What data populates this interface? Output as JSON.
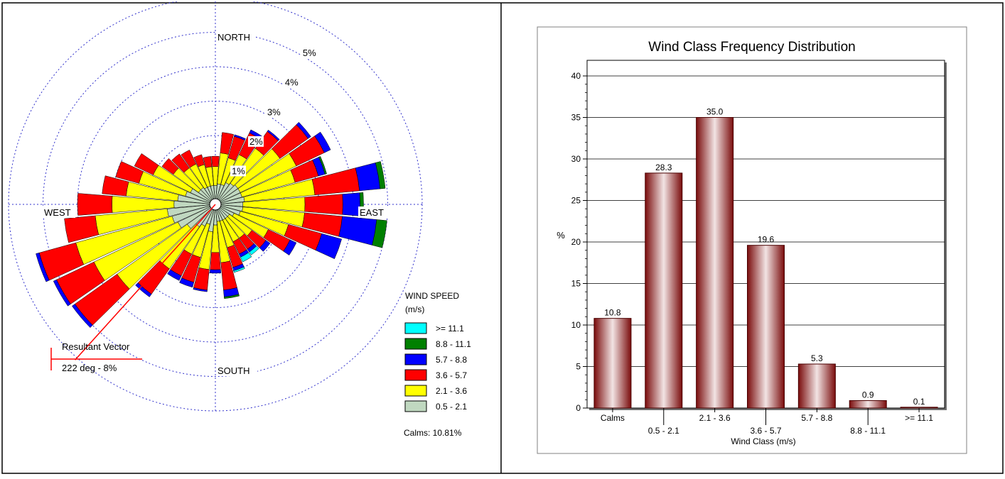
{
  "chart_data": [
    {
      "type": "wind-rose",
      "compass_labels": {
        "north": "NORTH",
        "south": "SOUTH",
        "east": "EAST",
        "west": "WEST"
      },
      "ring_labels": [
        "1%",
        "2%",
        "3%",
        "4%",
        "5%"
      ],
      "rings_pct": [
        1,
        2,
        3,
        4,
        5,
        6
      ],
      "directions_deg": [
        0,
        10,
        20,
        30,
        40,
        50,
        60,
        70,
        80,
        90,
        100,
        110,
        120,
        130,
        140,
        150,
        160,
        170,
        180,
        190,
        200,
        210,
        220,
        230,
        240,
        250,
        260,
        270,
        280,
        290,
        300,
        310,
        320,
        330,
        340,
        350
      ],
      "colors": [
        "#c0d8c0",
        "#ffff00",
        "#ff0000",
        "#0000ff",
        "#008000",
        "#00ffff"
      ],
      "cumulative_pct": [
        [
          0.55,
          1.1,
          1.4,
          1.4,
          1.4,
          1.4
        ],
        [
          0.6,
          1.5,
          2.1,
          2.1,
          2.1,
          2.1
        ],
        [
          0.6,
          1.4,
          2.05,
          2.1,
          2.1,
          2.1
        ],
        [
          0.7,
          1.6,
          2.3,
          2.4,
          2.4,
          2.4
        ],
        [
          0.75,
          2.0,
          2.6,
          2.65,
          2.65,
          2.65
        ],
        [
          0.8,
          2.3,
          3.3,
          3.4,
          3.4,
          3.4
        ],
        [
          0.8,
          2.6,
          3.5,
          3.7,
          3.7,
          3.7
        ],
        [
          0.8,
          2.4,
          3.1,
          3.3,
          3.35,
          3.35
        ],
        [
          0.85,
          2.9,
          4.2,
          4.8,
          4.95,
          4.95
        ],
        [
          0.8,
          2.6,
          3.7,
          4.2,
          4.3,
          4.3
        ],
        [
          0.8,
          2.6,
          3.7,
          4.7,
          5.0,
          5.0
        ],
        [
          0.75,
          2.2,
          3.2,
          3.8,
          3.8,
          3.8
        ],
        [
          0.6,
          1.7,
          2.4,
          2.6,
          2.6,
          2.6
        ],
        [
          0.5,
          1.3,
          1.8,
          1.95,
          1.95,
          1.95
        ],
        [
          0.5,
          1.2,
          1.6,
          1.7,
          1.7,
          1.8
        ],
        [
          0.5,
          1.2,
          1.6,
          1.7,
          1.7,
          1.85
        ],
        [
          0.5,
          1.3,
          1.9,
          2.0,
          2.0,
          2.05
        ],
        [
          0.5,
          1.7,
          2.5,
          2.7,
          2.75,
          2.75
        ],
        [
          0.6,
          1.4,
          1.9,
          2.0,
          2.0,
          2.0
        ],
        [
          0.8,
          1.9,
          2.5,
          2.55,
          2.55,
          2.55
        ],
        [
          0.6,
          1.6,
          2.35,
          2.5,
          2.5,
          2.5
        ],
        [
          0.7,
          1.6,
          2.3,
          2.45,
          2.45,
          2.45
        ],
        [
          0.8,
          2.3,
          3.2,
          3.3,
          3.3,
          3.3
        ],
        [
          1.0,
          3.5,
          5.0,
          5.1,
          5.1,
          5.1
        ],
        [
          1.2,
          3.9,
          5.1,
          5.2,
          5.2,
          5.2
        ],
        [
          1.3,
          4.2,
          5.3,
          5.4,
          5.4,
          5.4
        ],
        [
          1.4,
          3.5,
          4.4,
          4.4,
          4.4,
          4.4
        ],
        [
          1.2,
          3.0,
          4.0,
          4.0,
          4.0,
          4.0
        ],
        [
          1.1,
          2.6,
          3.3,
          3.3,
          3.3,
          3.3
        ],
        [
          0.9,
          2.3,
          3.0,
          3.0,
          3.0,
          3.0
        ],
        [
          0.8,
          2.0,
          2.6,
          2.6,
          2.6,
          2.6
        ],
        [
          0.6,
          1.5,
          1.9,
          1.9,
          1.9,
          1.9
        ],
        [
          0.6,
          1.3,
          1.8,
          1.8,
          1.8,
          1.8
        ],
        [
          0.55,
          1.3,
          1.75,
          1.75,
          1.75,
          1.75
        ],
        [
          0.55,
          1.2,
          1.5,
          1.5,
          1.5,
          1.5
        ],
        [
          0.55,
          1.1,
          1.4,
          1.4,
          1.4,
          1.4
        ]
      ],
      "resultant_vector": {
        "title": "Resultant Vector",
        "label": "222 deg - 8%",
        "direction_deg": 222
      },
      "legend": {
        "title_line1": "WIND SPEED",
        "title_line2": "(m/s)",
        "items": [
          {
            "label": ">= 11.1",
            "color": "#00ffff"
          },
          {
            "label": "8.8 - 11.1",
            "color": "#008000"
          },
          {
            "label": "5.7 -  8.8",
            "color": "#0000ff"
          },
          {
            "label": "3.6 -  5.7",
            "color": "#ff0000"
          },
          {
            "label": "2.1 -  3.6",
            "color": "#ffff00"
          },
          {
            "label": "0.5 -  2.1",
            "color": "#c0d8c0"
          }
        ],
        "calms": "Calms: 10.81%"
      }
    },
    {
      "type": "bar",
      "title": "Wind Class Frequency Distribution",
      "xlabel": "Wind Class (m/s)",
      "ylabel": "%",
      "categories": [
        "Calms",
        "0.5 -  2.1",
        "2.1 -  3.6",
        "3.6 -  5.7",
        "5.7 -  8.8",
        "8.8 - 11.1",
        ">= 11.1"
      ],
      "values": [
        10.8,
        28.3,
        35.0,
        19.6,
        5.3,
        0.9,
        0.1
      ],
      "value_labels": [
        "10.8",
        "28.3",
        "35.0",
        "19.6",
        "5.3",
        "0.9",
        "0.1"
      ],
      "ylim": [
        0,
        40
      ],
      "yticks": [
        0,
        5,
        10,
        15,
        20,
        25,
        30,
        35,
        40
      ],
      "grid": true,
      "bar_color": "#8b1a1a"
    }
  ]
}
